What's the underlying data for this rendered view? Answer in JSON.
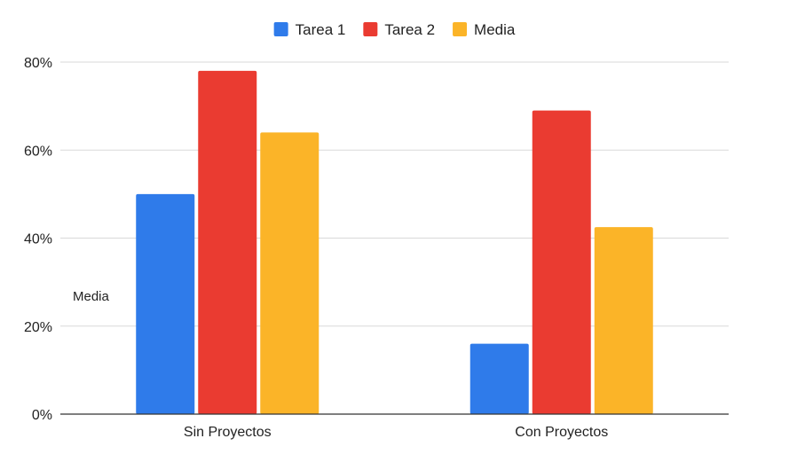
{
  "chart_data": {
    "type": "bar",
    "categories": [
      "Sin Proyectos",
      "Con Proyectos"
    ],
    "series": [
      {
        "name": "Tarea 1",
        "color": "#2f7bea",
        "values": [
          50,
          16
        ]
      },
      {
        "name": "Tarea 2",
        "color": "#ea3b31",
        "values": [
          78,
          69
        ]
      },
      {
        "name": "Media",
        "color": "#fbb428",
        "values": [
          64,
          42.5
        ]
      }
    ],
    "ylim": [
      0,
      80
    ],
    "yticks": [
      0,
      20,
      40,
      60,
      80
    ],
    "ytick_labels": [
      "0%",
      "20%",
      "40%",
      "60%",
      "80%"
    ],
    "annotation": "Media",
    "grid": true,
    "legend_position": "top-center",
    "colors": {
      "gridline": "#d9d9d9",
      "baseline": "#333333"
    }
  }
}
